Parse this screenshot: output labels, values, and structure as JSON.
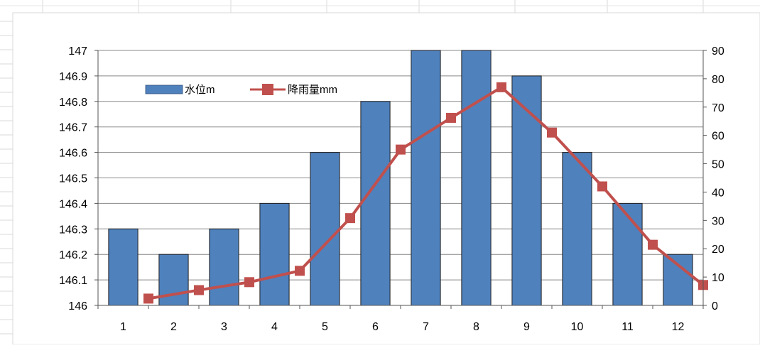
{
  "chart_data": {
    "type": "bar",
    "categories": [
      "1",
      "2",
      "3",
      "4",
      "5",
      "6",
      "7",
      "8",
      "9",
      "10",
      "11",
      "12"
    ],
    "series": [
      {
        "name": "水位m",
        "type": "bar",
        "axis": "left",
        "color": "#4F81BD",
        "values": [
          146.3,
          146.2,
          146.3,
          146.4,
          146.6,
          146.8,
          147.0,
          147.0,
          146.9,
          146.6,
          146.4,
          146.2
        ]
      },
      {
        "name": "降雨量mm",
        "type": "line",
        "axis": "right",
        "color": "#C0504D",
        "marker": "square",
        "values": [
          2.4,
          5.4,
          8.2,
          12.2,
          30.8,
          55.0,
          66.2,
          77.0,
          61.0,
          42.0,
          21.4,
          7.2
        ]
      }
    ],
    "y_left": {
      "ylim": [
        146,
        147
      ],
      "ticks": [
        "146",
        "146.1",
        "146.2",
        "146.3",
        "146.4",
        "146.5",
        "146.6",
        "146.7",
        "146.8",
        "146.9",
        "147"
      ]
    },
    "y_right": {
      "ylim": [
        0,
        90
      ],
      "ticks": [
        "0",
        "10",
        "20",
        "30",
        "40",
        "50",
        "60",
        "70",
        "80",
        "90"
      ]
    },
    "grid": true,
    "legend": "top-left"
  }
}
